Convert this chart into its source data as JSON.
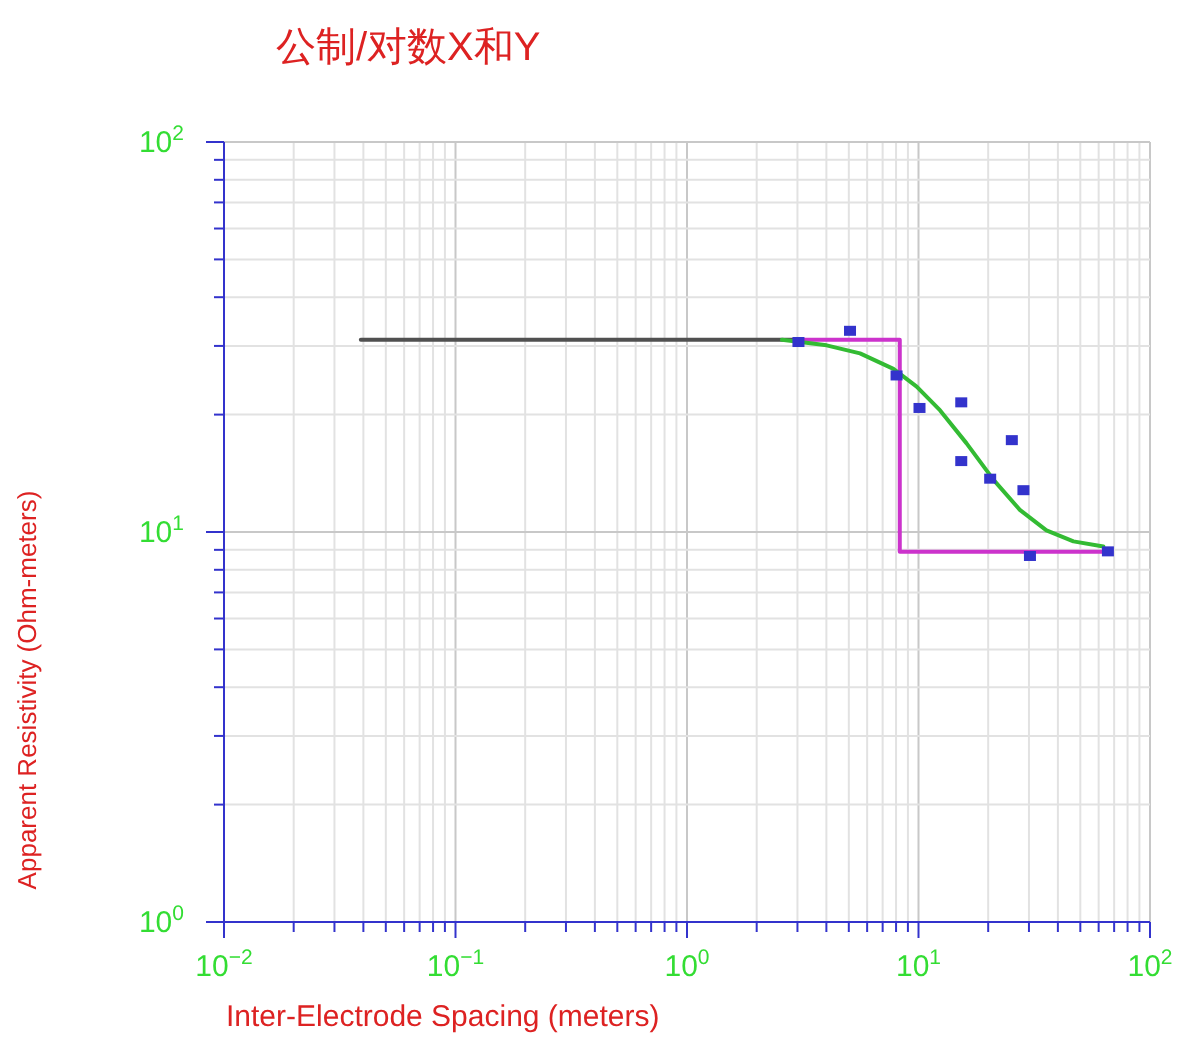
{
  "chart_data": {
    "type": "line",
    "title": "公制/对数X和Y",
    "xlabel": "Inter-Electrode Spacing (meters)",
    "ylabel": "Apparent Resistivity (Ohm-meters)",
    "log": "xy",
    "grid": true,
    "xlim": [
      0.01,
      100
    ],
    "ylim": [
      1,
      100
    ],
    "xticks": [
      {
        "value": 0.01,
        "label": "10$^{−2}$"
      },
      {
        "value": 0.1,
        "label": "10$^{−1}$"
      },
      {
        "value": 1,
        "label": "10$^{0}$"
      },
      {
        "value": 10,
        "label": "10$^{1}$"
      },
      {
        "value": 100,
        "label": "10$^{2}$"
      }
    ],
    "yticks": [
      {
        "value": 1,
        "label": "10$^{0}$"
      },
      {
        "value": 10,
        "label": "10$^{1}$"
      },
      {
        "value": 100,
        "label": "10$^{2}$"
      }
    ],
    "series": [
      {
        "type": "line",
        "color": "#505050",
        "marker": "none",
        "x": [
          0.039,
          3.0
        ],
        "values": [
          31.1,
          31.1
        ]
      },
      {
        "type": "step",
        "color": "#cc33cc",
        "marker": "none",
        "x": [
          3.0,
          8.3,
          67
        ],
        "values": [
          31.1,
          8.9,
          8.9
        ]
      },
      {
        "type": "line",
        "color": "#33bb33",
        "marker": "none",
        "x": [
          2.57,
          4.01,
          5.59,
          7.79,
          9.82,
          12.4,
          16.1,
          21.1,
          27.4,
          35.7,
          46.7,
          62.9
        ],
        "values": [
          31.1,
          30.1,
          28.7,
          26.2,
          23.6,
          20.5,
          16.9,
          13.6,
          11.4,
          10.1,
          9.46,
          9.18
        ]
      },
      {
        "type": "scatter",
        "color": "#3333cc",
        "marker": "square",
        "x": [
          3.03,
          5.06,
          8.04,
          10.1,
          15.3,
          15.3,
          20.4,
          25.3,
          28.4,
          30.3,
          65.8
        ],
        "values": [
          30.7,
          32.8,
          25.2,
          20.8,
          21.5,
          15.2,
          13.7,
          17.2,
          12.8,
          8.68,
          8.92
        ]
      }
    ]
  }
}
